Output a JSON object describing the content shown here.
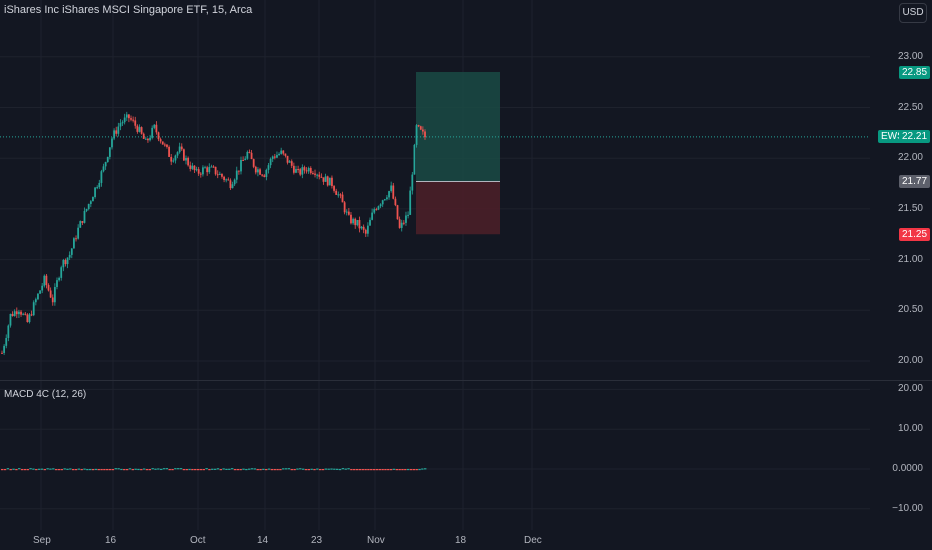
{
  "header": {
    "symbol_title": "iShares Inc iShares MSCI Singapore ETF, 15, Arca",
    "currency": "USD"
  },
  "indicator": {
    "macd_title": "MACD 4C (12, 26)"
  },
  "tags": {
    "ticker": "EWS",
    "last_price": "22.21",
    "target_price": "22.85",
    "entry_price": "21.77",
    "stop_price": "21.25"
  },
  "colors": {
    "background": "#131722",
    "grid": "#1e222d",
    "up": "#26a69a",
    "down": "#ef5350",
    "profit_zone": "#1a4a44",
    "loss_zone": "#4a1f28",
    "entry_tag": "#5d606b",
    "axis_text": "#b2b5be"
  },
  "chart_data": [
    {
      "type": "candlestick",
      "title": "iShares Inc iShares MSCI Singapore ETF, 15, Arca",
      "y_ticks": [
        "20.00",
        "20.50",
        "21.00",
        "21.50",
        "22.00",
        "22.50",
        "23.00"
      ],
      "ylim": [
        19.93,
        23.13
      ],
      "x_ticks": [
        "Sep",
        "16",
        "Oct",
        "14",
        "23",
        "Nov",
        "18",
        "Dec"
      ],
      "grid": true,
      "series": [
        {
          "anchors": [
            [
              "Aug 29",
              20.08
            ],
            [
              "Aug 30",
              20.45
            ],
            [
              "Sep 3",
              20.52
            ],
            [
              "Sep 4",
              20.38
            ],
            [
              "Sep 5",
              20.6
            ],
            [
              "Sep 6",
              20.8
            ],
            [
              "Sep 9",
              20.6
            ],
            [
              "Sep 10",
              20.95
            ],
            [
              "Sep 11",
              21.05
            ],
            [
              "Sep 12",
              21.3
            ],
            [
              "Sep 13",
              21.5
            ],
            [
              "Sep 16",
              21.7
            ],
            [
              "Sep 17",
              21.9
            ],
            [
              "Sep 18",
              22.2
            ],
            [
              "Sep 19",
              22.35
            ],
            [
              "Sep 20",
              22.4
            ],
            [
              "Sep 23",
              22.3
            ],
            [
              "Sep 24",
              22.15
            ],
            [
              "Sep 25",
              22.3
            ],
            [
              "Sep 26",
              22.15
            ],
            [
              "Sep 27",
              22.0
            ],
            [
              "Sep 30",
              22.08
            ],
            [
              "Oct 1",
              21.95
            ],
            [
              "Oct 2",
              21.85
            ],
            [
              "Oct 3",
              21.9
            ],
            [
              "Oct 4",
              21.88
            ],
            [
              "Oct 7",
              21.82
            ],
            [
              "Oct 8",
              21.75
            ],
            [
              "Oct 9",
              21.9
            ],
            [
              "Oct 10",
              22.05
            ],
            [
              "Oct 11",
              21.9
            ],
            [
              "Oct 14",
              21.85
            ],
            [
              "Oct 15",
              22.02
            ],
            [
              "Oct 16",
              22.05
            ],
            [
              "Oct 17",
              21.95
            ],
            [
              "Oct 18",
              21.85
            ],
            [
              "Oct 21",
              21.9
            ],
            [
              "Oct 22",
              21.88
            ],
            [
              "Oct 23",
              21.8
            ],
            [
              "Oct 24",
              21.75
            ],
            [
              "Oct 25",
              21.6
            ],
            [
              "Oct 28",
              21.4
            ],
            [
              "Oct 29",
              21.35
            ],
            [
              "Oct 30",
              21.25
            ],
            [
              "Oct 31",
              21.5
            ],
            [
              "Nov 1",
              21.6
            ],
            [
              "Nov 4",
              21.7
            ],
            [
              "Nov 5",
              21.3
            ],
            [
              "Nov 6",
              21.45
            ],
            [
              "Nov 7",
              22.3
            ],
            [
              "Nov 8",
              22.21
            ]
          ]
        }
      ],
      "position": {
        "entry": 21.77,
        "target": 22.85,
        "stop": 21.25,
        "last": 22.21
      }
    },
    {
      "type": "histogram",
      "title": "MACD 4C (12, 26)",
      "y_ticks": [
        "20.00",
        "10.00",
        "0.0000",
        "−10.00"
      ],
      "ylim": [
        -12,
        21
      ],
      "values": "near zero (approximately 0.0000) across the whole period"
    }
  ]
}
